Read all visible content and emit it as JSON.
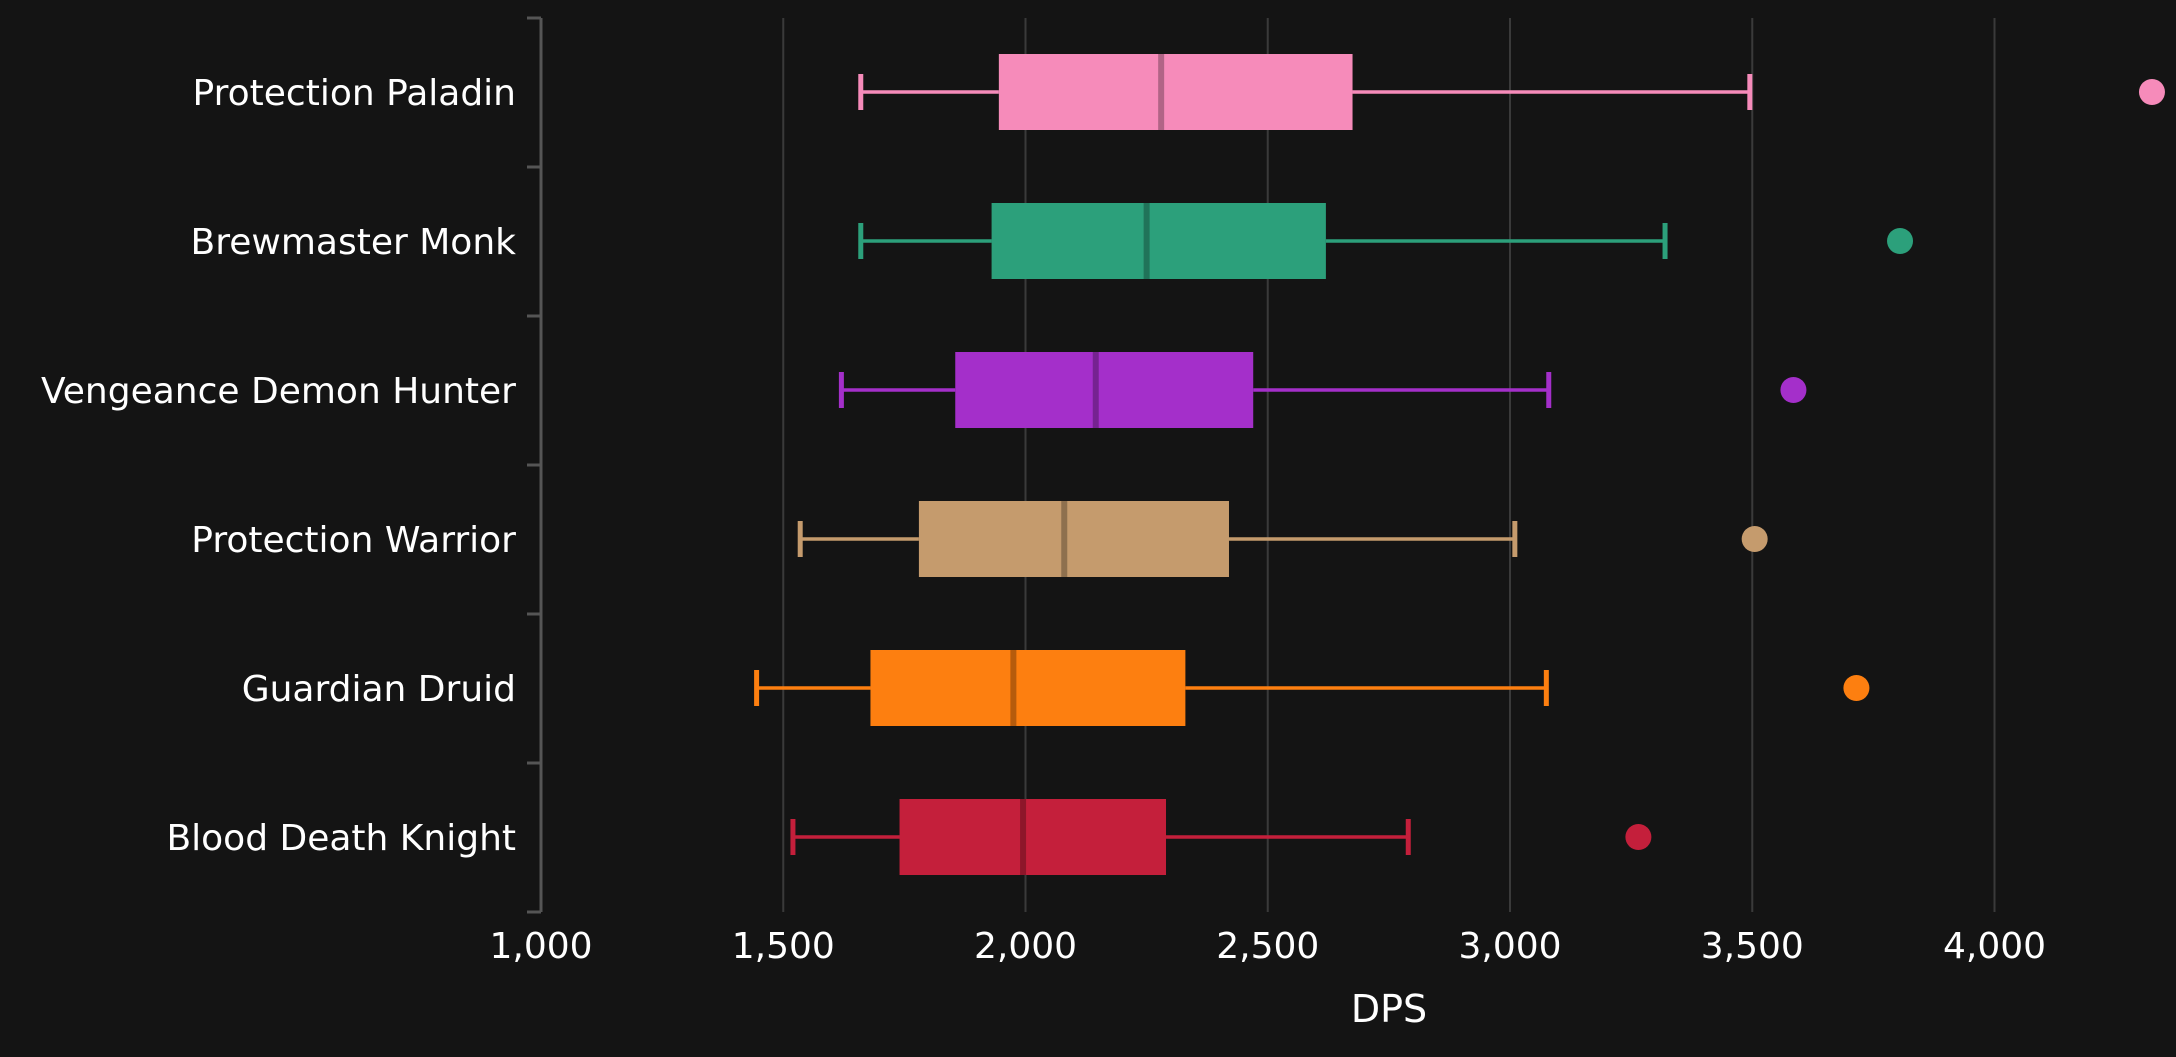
{
  "chart_data": {
    "type": "box",
    "orientation": "horizontal",
    "title": "",
    "xlabel": "DPS",
    "ylabel": "",
    "xlim": [
      1000,
      4300
    ],
    "x_ticks": [
      1000,
      1500,
      2000,
      2500,
      3000,
      3500,
      4000
    ],
    "x_tick_labels": [
      "1,000",
      "1,500",
      "2,000",
      "2,500",
      "3,000",
      "3,500",
      "4,000"
    ],
    "grid": "vertical",
    "background": "#141414",
    "categories": [
      "Protection Paladin",
      "Brewmaster Monk",
      "Vengeance Demon Hunter",
      "Protection Warrior",
      "Guardian Druid",
      "Blood Death Knight"
    ],
    "series": [
      {
        "category": "Protection Paladin",
        "color": "#f68bba",
        "min": 1660,
        "q1": 1945,
        "median": 2280,
        "q3": 2675,
        "max": 3495,
        "outliers": [
          4325
        ]
      },
      {
        "category": "Brewmaster Monk",
        "color": "#2ca07b",
        "min": 1660,
        "q1": 1930,
        "median": 2250,
        "q3": 2620,
        "max": 3320,
        "outliers": [
          3805
        ]
      },
      {
        "category": "Vengeance Demon Hunter",
        "color": "#a42fca",
        "min": 1620,
        "q1": 1855,
        "median": 2145,
        "q3": 2470,
        "max": 3080,
        "outliers": [
          3585
        ]
      },
      {
        "category": "Protection Warrior",
        "color": "#c59b6d",
        "min": 1535,
        "q1": 1780,
        "median": 2080,
        "q3": 2420,
        "max": 3010,
        "outliers": [
          3505
        ]
      },
      {
        "category": "Guardian Druid",
        "color": "#fd7f10",
        "min": 1445,
        "q1": 1680,
        "median": 1975,
        "q3": 2330,
        "max": 3075,
        "outliers": [
          3715
        ]
      },
      {
        "category": "Blood Death Knight",
        "color": "#c41f3b",
        "min": 1520,
        "q1": 1740,
        "median": 1995,
        "q3": 2290,
        "max": 2790,
        "outliers": [
          3265
        ]
      }
    ]
  }
}
